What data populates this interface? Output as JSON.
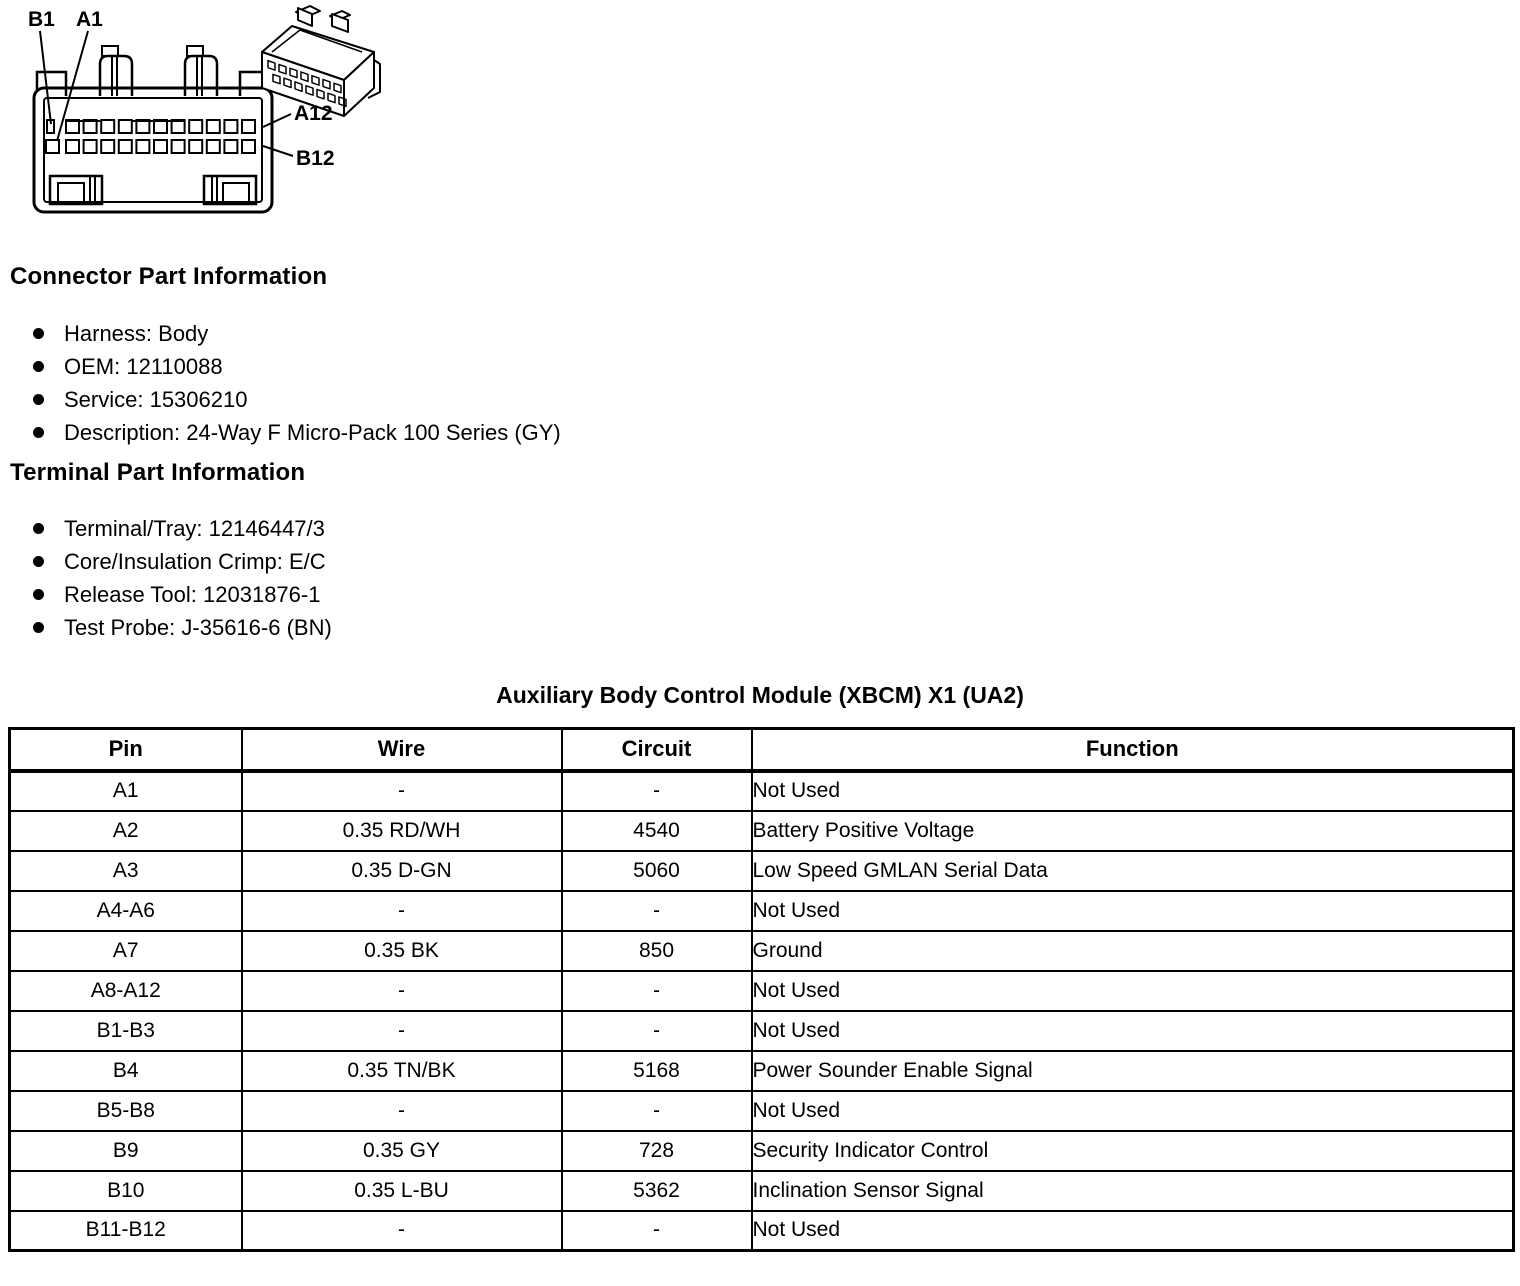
{
  "diagram": {
    "labels": {
      "b1": "B1",
      "a1": "A1",
      "a12": "A12",
      "b12": "B12"
    }
  },
  "connector_info": {
    "heading": "Connector Part Information",
    "items": [
      "Harness: Body",
      "OEM: 12110088",
      "Service: 15306210",
      "Description: 24-Way F Micro-Pack 100 Series (GY)"
    ]
  },
  "terminal_info": {
    "heading": "Terminal Part Information",
    "items": [
      "Terminal/Tray: 12146447/3",
      "Core/Insulation Crimp: E/C",
      "Release Tool: 12031876-1",
      "Test Probe: J-35616-6 (BN)"
    ]
  },
  "table": {
    "title": "Auxiliary Body Control Module (XBCM) X1 (UA2)",
    "columns": [
      "Pin",
      "Wire",
      "Circuit",
      "Function"
    ],
    "rows": [
      [
        "A1",
        "-",
        "-",
        "Not Used"
      ],
      [
        "A2",
        "0.35 RD/WH",
        "4540",
        "Battery Positive Voltage"
      ],
      [
        "A3",
        "0.35 D-GN",
        "5060",
        "Low Speed GMLAN Serial Data"
      ],
      [
        "A4-A6",
        "-",
        "-",
        "Not Used"
      ],
      [
        "A7",
        "0.35 BK",
        "850",
        "Ground"
      ],
      [
        "A8-A12",
        "-",
        "-",
        "Not Used"
      ],
      [
        "B1-B3",
        "-",
        "-",
        "Not Used"
      ],
      [
        "B4",
        "0.35 TN/BK",
        "5168",
        "Power Sounder Enable Signal"
      ],
      [
        "B5-B8",
        "-",
        "-",
        "Not Used"
      ],
      [
        "B9",
        "0.35 GY",
        "728",
        "Security Indicator Control"
      ],
      [
        "B10",
        "0.35 L-BU",
        "5362",
        "Inclination Sensor Signal"
      ],
      [
        "B11-B12",
        "-",
        "-",
        "Not Used"
      ]
    ]
  }
}
